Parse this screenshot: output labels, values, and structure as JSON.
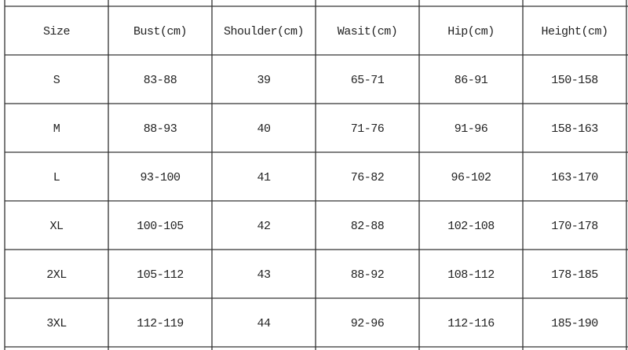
{
  "table": {
    "header": [
      "Size",
      "Bust(cm)",
      "Shoulder(cm)",
      "Wasit(cm)",
      "Hip(cm)",
      "Height(cm)"
    ],
    "rows": [
      [
        "S",
        "83-88",
        "39",
        "65-71",
        "86-91",
        "150-158"
      ],
      [
        "M",
        "88-93",
        "40",
        "71-76",
        "91-96",
        "158-163"
      ],
      [
        "L",
        "93-100",
        "41",
        "76-82",
        "96-102",
        "163-170"
      ],
      [
        "XL",
        "100-105",
        "42",
        "82-88",
        "102-108",
        "170-178"
      ],
      [
        "2XL",
        "105-112",
        "43",
        "88-92",
        "108-112",
        "178-185"
      ],
      [
        "3XL",
        "112-119",
        "44",
        "92-96",
        "112-116",
        "185-190"
      ]
    ]
  }
}
